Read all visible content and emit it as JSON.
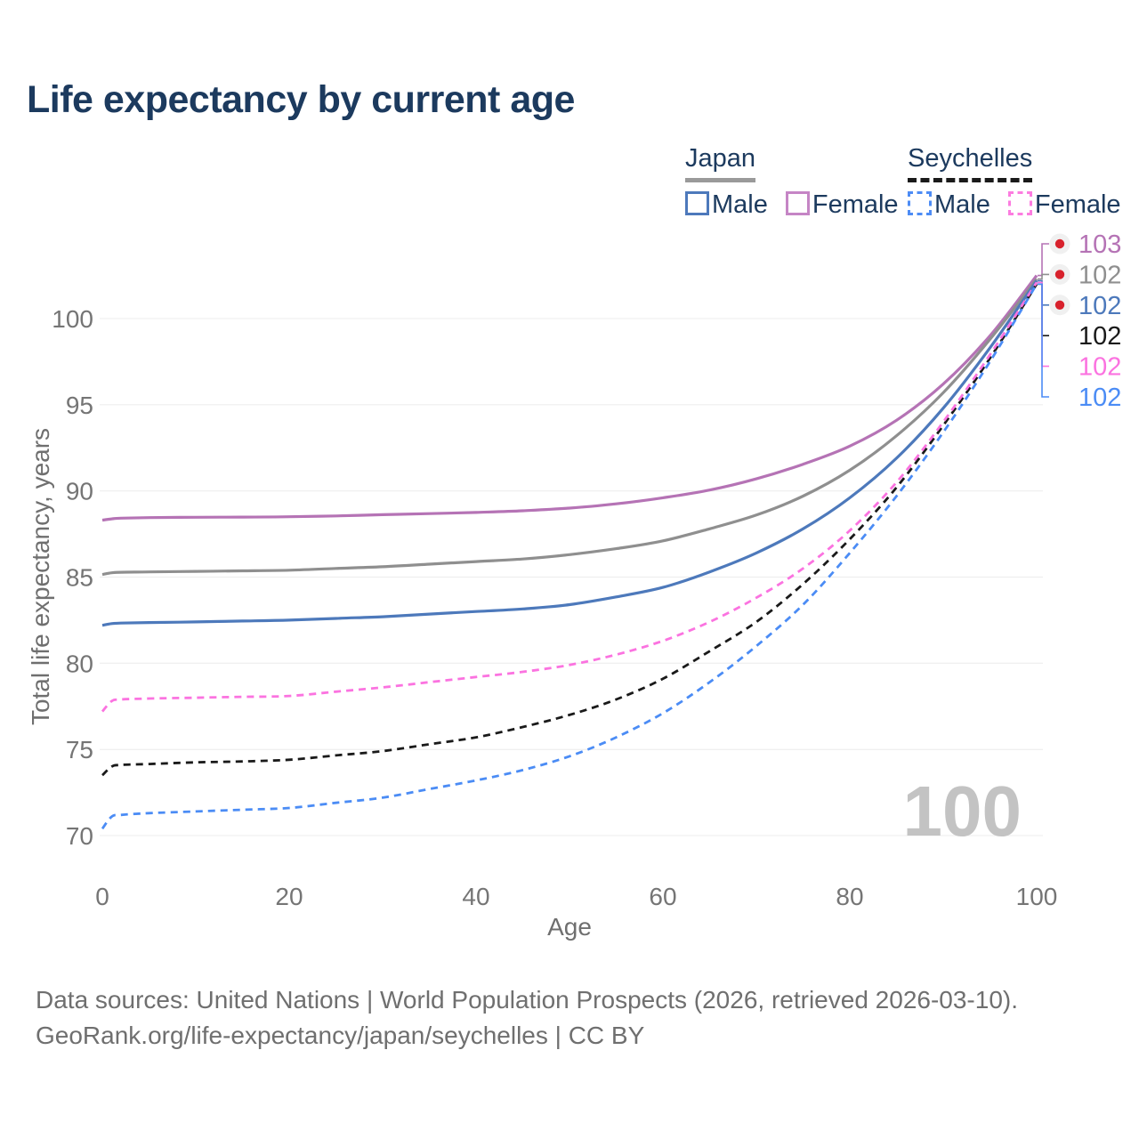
{
  "title": "Life expectancy by current age",
  "legend": {
    "japan": {
      "label": "Japan",
      "underline_color": "#9a9a9a",
      "male_label": "Male",
      "male_color": "#4d79bb",
      "female_label": "Female",
      "female_color": "#c585c5"
    },
    "seychelles": {
      "label": "Seychelles",
      "underline_color": "#1a1a1a",
      "male_label": "Male",
      "male_color": "#4d8cf5",
      "female_label": "Female",
      "female_color": "#fc7ce0"
    }
  },
  "watermark": "100",
  "footer": {
    "line1": "Data sources: United Nations | World Population Prospects (2026, retrieved 2026-03-10).",
    "line2": "GeoRank.org/life-expectancy/japan/seychelles | CC BY"
  },
  "chart_data": {
    "type": "line",
    "title": "Life expectancy by current age",
    "xlabel": "Age",
    "ylabel": "Total life expectancy, years",
    "xlim": [
      0,
      100
    ],
    "ylim": [
      70,
      103
    ],
    "xticks": [
      0,
      20,
      40,
      60,
      80,
      100
    ],
    "yticks": [
      70,
      75,
      80,
      85,
      90,
      95,
      100
    ],
    "grid": "horizontal",
    "legend_position": "top-right",
    "ages": [
      0,
      1,
      2,
      5,
      10,
      15,
      20,
      25,
      30,
      35,
      40,
      45,
      50,
      55,
      60,
      65,
      70,
      75,
      80,
      85,
      90,
      95,
      100
    ],
    "series": [
      {
        "name": "Japan Female",
        "country": "Japan",
        "flag": "japan",
        "style": "solid",
        "color": "#b573b5",
        "end_label": "103",
        "values": [
          88.3,
          88.38,
          88.42,
          88.45,
          88.47,
          88.48,
          88.5,
          88.55,
          88.62,
          88.68,
          88.75,
          88.85,
          89.0,
          89.25,
          89.6,
          90.05,
          90.7,
          91.55,
          92.6,
          94.1,
          96.2,
          99.0,
          102.5
        ]
      },
      {
        "name": "Japan Both sexes",
        "country": "Japan",
        "flag": "japan",
        "style": "solid",
        "color": "#8f8f8f",
        "end_label": "102",
        "values": [
          85.15,
          85.25,
          85.28,
          85.3,
          85.33,
          85.36,
          85.4,
          85.5,
          85.6,
          85.75,
          85.9,
          86.05,
          86.3,
          86.65,
          87.1,
          87.8,
          88.6,
          89.7,
          91.2,
          93.2,
          95.7,
          98.8,
          102.3
        ]
      },
      {
        "name": "Japan Male",
        "country": "Japan",
        "flag": "japan",
        "style": "solid",
        "color": "#4d79bb",
        "end_label": "102",
        "values": [
          82.2,
          82.3,
          82.33,
          82.36,
          82.4,
          82.45,
          82.5,
          82.6,
          82.7,
          82.85,
          83.0,
          83.15,
          83.4,
          83.85,
          84.4,
          85.3,
          86.4,
          87.8,
          89.6,
          91.9,
          94.8,
          98.3,
          102.2
        ]
      },
      {
        "name": "Seychelles Both sexes",
        "country": "Seychelles",
        "flag": "seychelles",
        "style": "dashed",
        "color": "#1a1a1a",
        "end_label": "102",
        "values": [
          73.5,
          74.0,
          74.1,
          74.15,
          74.25,
          74.3,
          74.4,
          74.65,
          74.9,
          75.3,
          75.7,
          76.3,
          77.0,
          77.9,
          79.1,
          80.7,
          82.4,
          84.6,
          87.2,
          90.2,
          93.8,
          97.7,
          102.0
        ]
      },
      {
        "name": "Seychelles Female",
        "country": "Seychelles",
        "flag": "seychelles",
        "style": "dashed",
        "color": "#fb73e0",
        "end_label": "102",
        "values": [
          77.2,
          77.8,
          77.9,
          77.95,
          78.0,
          78.05,
          78.1,
          78.35,
          78.6,
          78.9,
          79.2,
          79.5,
          79.9,
          80.5,
          81.3,
          82.4,
          83.8,
          85.5,
          87.7,
          90.5,
          94.0,
          97.9,
          102.1
        ]
      },
      {
        "name": "Seychelles Male",
        "country": "Seychelles",
        "flag": "seychelles",
        "style": "dashed",
        "color": "#4b8cf5",
        "end_label": "102",
        "values": [
          70.4,
          71.1,
          71.2,
          71.3,
          71.4,
          71.5,
          71.6,
          71.9,
          72.2,
          72.7,
          73.2,
          73.8,
          74.6,
          75.7,
          77.1,
          78.9,
          81.0,
          83.4,
          86.4,
          89.7,
          93.4,
          97.5,
          102.0
        ]
      }
    ],
    "end_label_row_order": [
      "Japan Female",
      "Japan Both sexes",
      "Japan Male",
      "Seychelles Both sexes",
      "Seychelles Female",
      "Seychelles Male"
    ]
  },
  "colors": {
    "title_navy": "#1c3a5e",
    "axis_gray": "#757575",
    "grid_gray": "#ececec",
    "watermark_gray": "#c3c3c3",
    "japan_flag_red": "#d8222d"
  }
}
